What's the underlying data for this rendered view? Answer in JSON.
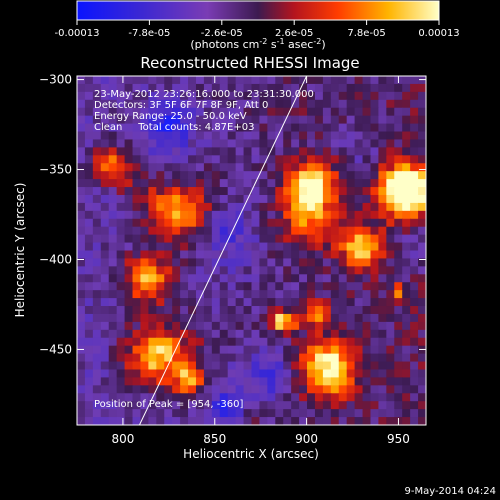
{
  "colorbar": {
    "tick_labels": [
      "-0.00013",
      "-7.8e-05",
      "-2.6e-05",
      "2.6e-05",
      "7.8e-05",
      "0.00013"
    ],
    "range": [
      -0.00013,
      0.00013
    ],
    "units_main": "(photons cm",
    "units_sup1": "-2",
    "units_mid": " s",
    "units_sup2": "-1",
    "units_mid2": " asec",
    "units_sup3": "-2",
    "units_end": ")"
  },
  "chart_data": {
    "type": "heatmap",
    "title": "Reconstructed RHESSI Image",
    "xlabel": "Heliocentric X (arcsec)",
    "ylabel": "Heliocentric Y (arcsec)",
    "xlim": [
      775,
      965
    ],
    "ylim": [
      -492,
      -298
    ],
    "xticks": [
      800,
      850,
      900,
      950
    ],
    "yticks": [
      -300,
      -350,
      -400,
      -450
    ],
    "annotations": [
      "23-May-2012 23:26:16.000 to 23:31:30.000",
      "Detectors: 3F 5F 6F 7F 8F 9F, Att 0",
      "Energy Range: 25.0 - 50.0 keV",
      "Clean     Total counts: 4.87E+03"
    ],
    "peak_label": "Position of Peak = [954, -360]",
    "limb_line": [
      [
        809,
        -492
      ],
      [
        900,
        -298
      ]
    ],
    "grid": false
  },
  "timestamp": "9-May-2014 04:24"
}
